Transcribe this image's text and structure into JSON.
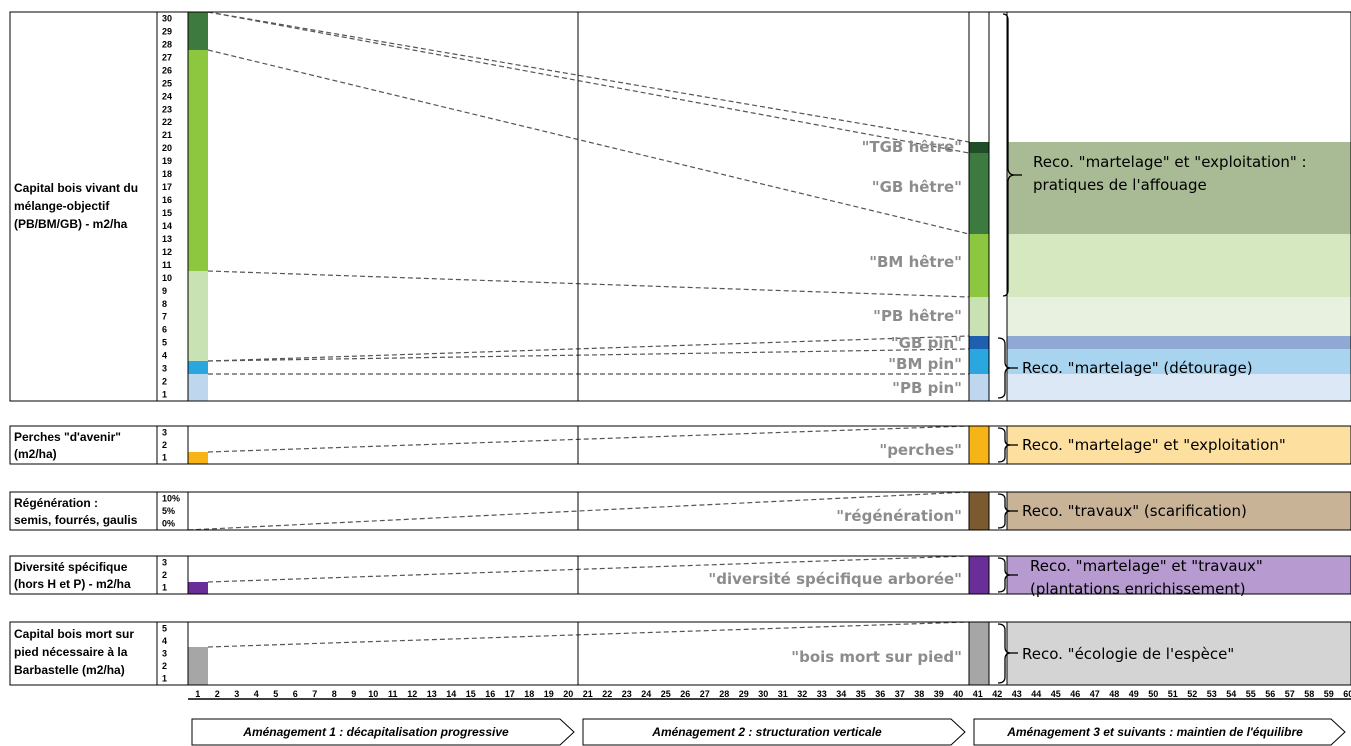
{
  "rows": [
    {
      "id": "capital",
      "label_lines": [
        "Capital bois vivant du",
        "mélange-objectif",
        "(PB/BM/GB) - m2/ha"
      ],
      "ticks": [
        "1",
        "2",
        "3",
        "4",
        "5",
        "6",
        "7",
        "8",
        "9",
        "10",
        "11",
        "12",
        "13",
        "14",
        "15",
        "16",
        "17",
        "18",
        "19",
        "20",
        "21",
        "22",
        "23",
        "24",
        "25",
        "26",
        "27",
        "28",
        "29",
        "30"
      ]
    },
    {
      "id": "perches",
      "label_lines": [
        "Perches \"d'avenir\"",
        "(m2/ha)"
      ],
      "ticks": [
        "1",
        "2",
        "3"
      ]
    },
    {
      "id": "regeneration",
      "label_lines": [
        "Régénération :",
        "semis, fourrés, gaulis"
      ],
      "ticks": [
        "0%",
        "5%",
        "10%"
      ]
    },
    {
      "id": "diversite",
      "label_lines": [
        "Diversité spécifique",
        "(hors H et P) - m2/ha"
      ],
      "ticks": [
        "1",
        "2",
        "3"
      ]
    },
    {
      "id": "boismort",
      "label_lines": [
        "Capital bois mort sur",
        "pied nécessaire à la",
        "Barbastelle (m2/ha)"
      ],
      "ticks": [
        "1",
        "2",
        "3",
        "4",
        "5"
      ]
    }
  ],
  "stock_labels": [
    "\"TGB hêtre\"",
    "\"GB hêtre\"",
    "\"BM hêtre\"",
    "\"PB hêtre\"",
    "\"GB pin\"",
    "\"BM pin\"",
    "\"PB pin\"",
    "\"perches\"",
    "\"régénération\"",
    "\"diversité spécifique arborée\"",
    "\"bois mort sur pied\""
  ],
  "recommendations": [
    [
      "Reco. \"martelage\" et \"exploitation\" :",
      "pratiques de l'affouage"
    ],
    [
      "Reco. \"martelage\" (détourage)"
    ],
    [
      "Reco. \"martelage\" et \"exploitation\""
    ],
    [
      "Reco. \"travaux\" (scarification)"
    ],
    [
      "Reco. \"martelage\" et \"travaux\"",
      "(plantations enrichissement)"
    ],
    [
      "Reco. \"écologie de l'espèce\""
    ]
  ],
  "x_axis": {
    "first": 1,
    "last": 60
  },
  "phases": [
    "Aménagement 1 : décapitalisation progressive",
    "Aménagement 2 : structuration verticale",
    "Aménagement 3 et suivants : maintien de l'équilibre"
  ],
  "colors": {
    "hetre_tgb": "#1e4d27",
    "hetre_gb": "#3c7a3f",
    "hetre_bm": "#8dc63f",
    "hetre_pb": "#c9e2b3",
    "pin_gb": "#1f5fb0",
    "pin_bm": "#2aa7df",
    "pin_pb": "#bfd7ee",
    "perches": "#f7b417",
    "regeneration": "#7a5a2e",
    "diversite": "#6a2e98",
    "boismort": "#a6a6a6",
    "reco_affouage": "#a9bb94",
    "reco_bm_hetre": "#d6e8c0",
    "reco_pb_hetre": "#e8f1df",
    "reco_pin_gb": "#8fa8d4",
    "reco_pin_bm": "#a9d4f0",
    "reco_pin_pb": "#dce8f5",
    "reco_perches": "#fde0a0",
    "reco_regeneration": "#c9b397",
    "reco_diversite": "#b69ad0",
    "reco_boismort": "#d4d4d4"
  }
}
